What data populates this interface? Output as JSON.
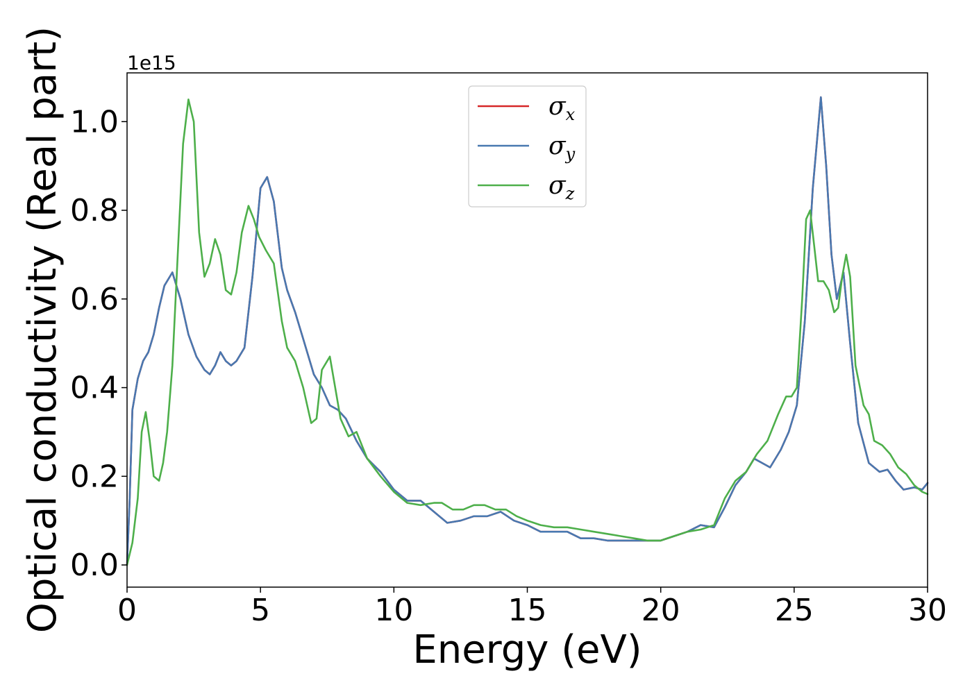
{
  "chart_data": {
    "type": "line",
    "title": "",
    "xlabel": "Energy (eV)",
    "ylabel": "Optical conductivity (Real part)",
    "y_offset_label": "1e15",
    "xlim": [
      0,
      30
    ],
    "ylim": [
      -0.05,
      1.11
    ],
    "xticks": [
      0,
      5,
      10,
      15,
      20,
      25,
      30
    ],
    "xtick_labels": [
      "0",
      "5",
      "10",
      "15",
      "20",
      "25",
      "30"
    ],
    "yticks": [
      0.0,
      0.2,
      0.4,
      0.6,
      0.8,
      1.0
    ],
    "ytick_labels": [
      "0.0",
      "0.2",
      "0.4",
      "0.6",
      "0.8",
      "1.0"
    ],
    "grid": false,
    "legend_position": "top-center",
    "series": [
      {
        "name": "σx",
        "symbol": "σ",
        "subscript": "x",
        "color": "#d62728",
        "x": [
          0,
          0.1,
          0.2,
          0.4,
          0.6,
          0.8,
          1.0,
          1.2,
          1.4,
          1.7,
          2.0,
          2.3,
          2.6,
          2.9,
          3.1,
          3.3,
          3.5,
          3.7,
          3.9,
          4.1,
          4.4,
          4.7,
          5.0,
          5.25,
          5.5,
          5.8,
          6.0,
          6.3,
          6.6,
          7.0,
          7.3,
          7.6,
          7.9,
          8.2,
          8.6,
          9.0,
          9.5,
          10.0,
          10.5,
          11.0,
          11.5,
          12.0,
          12.5,
          13.0,
          13.5,
          14.0,
          14.5,
          15.0,
          15.5,
          16.0,
          16.5,
          17.0,
          17.5,
          18.0,
          18.5,
          19.0,
          19.5,
          20.0,
          20.5,
          21.0,
          21.5,
          22.0,
          22.4,
          22.8,
          23.2,
          23.5,
          23.8,
          24.1,
          24.5,
          24.8,
          25.1,
          25.4,
          25.7,
          26.0,
          26.2,
          26.4,
          26.6,
          26.85,
          27.1,
          27.4,
          27.8,
          28.2,
          28.5,
          28.8,
          29.1,
          29.5,
          29.8,
          30.0
        ],
        "values": [
          0.0,
          0.15,
          0.35,
          0.42,
          0.46,
          0.48,
          0.52,
          0.58,
          0.63,
          0.66,
          0.6,
          0.52,
          0.47,
          0.44,
          0.43,
          0.45,
          0.48,
          0.46,
          0.45,
          0.46,
          0.49,
          0.65,
          0.85,
          0.875,
          0.82,
          0.67,
          0.62,
          0.57,
          0.51,
          0.43,
          0.4,
          0.36,
          0.35,
          0.33,
          0.28,
          0.24,
          0.21,
          0.17,
          0.145,
          0.145,
          0.12,
          0.095,
          0.1,
          0.11,
          0.11,
          0.12,
          0.1,
          0.09,
          0.075,
          0.075,
          0.075,
          0.06,
          0.06,
          0.055,
          0.055,
          0.055,
          0.055,
          0.055,
          0.065,
          0.075,
          0.09,
          0.085,
          0.13,
          0.18,
          0.21,
          0.24,
          0.23,
          0.22,
          0.26,
          0.3,
          0.36,
          0.55,
          0.85,
          1.055,
          0.9,
          0.7,
          0.6,
          0.66,
          0.5,
          0.32,
          0.23,
          0.21,
          0.215,
          0.19,
          0.17,
          0.175,
          0.17,
          0.185
        ]
      },
      {
        "name": "σy",
        "symbol": "σ",
        "subscript": "y",
        "color": "#4878b0",
        "x": [
          0,
          0.1,
          0.2,
          0.4,
          0.6,
          0.8,
          1.0,
          1.2,
          1.4,
          1.7,
          2.0,
          2.3,
          2.6,
          2.9,
          3.1,
          3.3,
          3.5,
          3.7,
          3.9,
          4.1,
          4.4,
          4.7,
          5.0,
          5.25,
          5.5,
          5.8,
          6.0,
          6.3,
          6.6,
          7.0,
          7.3,
          7.6,
          7.9,
          8.2,
          8.6,
          9.0,
          9.5,
          10.0,
          10.5,
          11.0,
          11.5,
          12.0,
          12.5,
          13.0,
          13.5,
          14.0,
          14.5,
          15.0,
          15.5,
          16.0,
          16.5,
          17.0,
          17.5,
          18.0,
          18.5,
          19.0,
          19.5,
          20.0,
          20.5,
          21.0,
          21.5,
          22.0,
          22.4,
          22.8,
          23.2,
          23.5,
          23.8,
          24.1,
          24.5,
          24.8,
          25.1,
          25.4,
          25.7,
          26.0,
          26.2,
          26.4,
          26.6,
          26.85,
          27.1,
          27.4,
          27.8,
          28.2,
          28.5,
          28.8,
          29.1,
          29.5,
          29.8,
          30.0
        ],
        "values": [
          0.0,
          0.15,
          0.35,
          0.42,
          0.46,
          0.48,
          0.52,
          0.58,
          0.63,
          0.66,
          0.6,
          0.52,
          0.47,
          0.44,
          0.43,
          0.45,
          0.48,
          0.46,
          0.45,
          0.46,
          0.49,
          0.65,
          0.85,
          0.875,
          0.82,
          0.67,
          0.62,
          0.57,
          0.51,
          0.43,
          0.4,
          0.36,
          0.35,
          0.33,
          0.28,
          0.24,
          0.21,
          0.17,
          0.145,
          0.145,
          0.12,
          0.095,
          0.1,
          0.11,
          0.11,
          0.12,
          0.1,
          0.09,
          0.075,
          0.075,
          0.075,
          0.06,
          0.06,
          0.055,
          0.055,
          0.055,
          0.055,
          0.055,
          0.065,
          0.075,
          0.09,
          0.085,
          0.13,
          0.18,
          0.21,
          0.24,
          0.23,
          0.22,
          0.26,
          0.3,
          0.36,
          0.55,
          0.85,
          1.055,
          0.9,
          0.7,
          0.6,
          0.66,
          0.5,
          0.32,
          0.23,
          0.21,
          0.215,
          0.19,
          0.17,
          0.175,
          0.17,
          0.185
        ]
      },
      {
        "name": "σz",
        "symbol": "σ",
        "subscript": "z",
        "color": "#4daf4a",
        "x": [
          0,
          0.2,
          0.4,
          0.55,
          0.7,
          0.85,
          1.0,
          1.2,
          1.35,
          1.5,
          1.7,
          1.9,
          2.1,
          2.3,
          2.5,
          2.7,
          2.9,
          3.1,
          3.3,
          3.5,
          3.7,
          3.9,
          4.1,
          4.3,
          4.55,
          4.75,
          4.95,
          5.2,
          5.5,
          5.8,
          6.0,
          6.3,
          6.6,
          6.9,
          7.1,
          7.3,
          7.6,
          7.8,
          8.0,
          8.3,
          8.6,
          9.0,
          9.5,
          10.0,
          10.5,
          11.0,
          11.5,
          11.8,
          12.2,
          12.6,
          13.0,
          13.4,
          13.8,
          14.2,
          14.6,
          15.0,
          15.5,
          16.0,
          16.5,
          17.0,
          17.5,
          18.0,
          18.5,
          19.0,
          19.5,
          20.0,
          20.5,
          21.0,
          21.5,
          22.0,
          22.4,
          22.8,
          23.2,
          23.6,
          24.0,
          24.4,
          24.7,
          24.9,
          25.1,
          25.3,
          25.45,
          25.6,
          25.75,
          25.9,
          26.1,
          26.3,
          26.5,
          26.65,
          26.8,
          26.95,
          27.1,
          27.3,
          27.6,
          27.8,
          28.0,
          28.3,
          28.6,
          28.9,
          29.2,
          29.5,
          29.8,
          30.0
        ],
        "values": [
          0.0,
          0.05,
          0.15,
          0.3,
          0.345,
          0.28,
          0.2,
          0.19,
          0.23,
          0.3,
          0.45,
          0.7,
          0.95,
          1.05,
          1.0,
          0.75,
          0.65,
          0.68,
          0.735,
          0.7,
          0.62,
          0.61,
          0.66,
          0.75,
          0.81,
          0.78,
          0.74,
          0.71,
          0.68,
          0.55,
          0.49,
          0.46,
          0.4,
          0.32,
          0.33,
          0.44,
          0.47,
          0.4,
          0.33,
          0.29,
          0.3,
          0.24,
          0.2,
          0.165,
          0.14,
          0.135,
          0.14,
          0.14,
          0.125,
          0.125,
          0.135,
          0.135,
          0.125,
          0.125,
          0.11,
          0.1,
          0.09,
          0.085,
          0.085,
          0.08,
          0.075,
          0.07,
          0.065,
          0.06,
          0.055,
          0.055,
          0.065,
          0.075,
          0.08,
          0.09,
          0.15,
          0.19,
          0.21,
          0.25,
          0.28,
          0.34,
          0.38,
          0.38,
          0.4,
          0.6,
          0.78,
          0.8,
          0.72,
          0.64,
          0.64,
          0.62,
          0.57,
          0.58,
          0.65,
          0.7,
          0.65,
          0.45,
          0.36,
          0.34,
          0.28,
          0.27,
          0.25,
          0.22,
          0.205,
          0.18,
          0.165,
          0.16
        ]
      }
    ]
  }
}
